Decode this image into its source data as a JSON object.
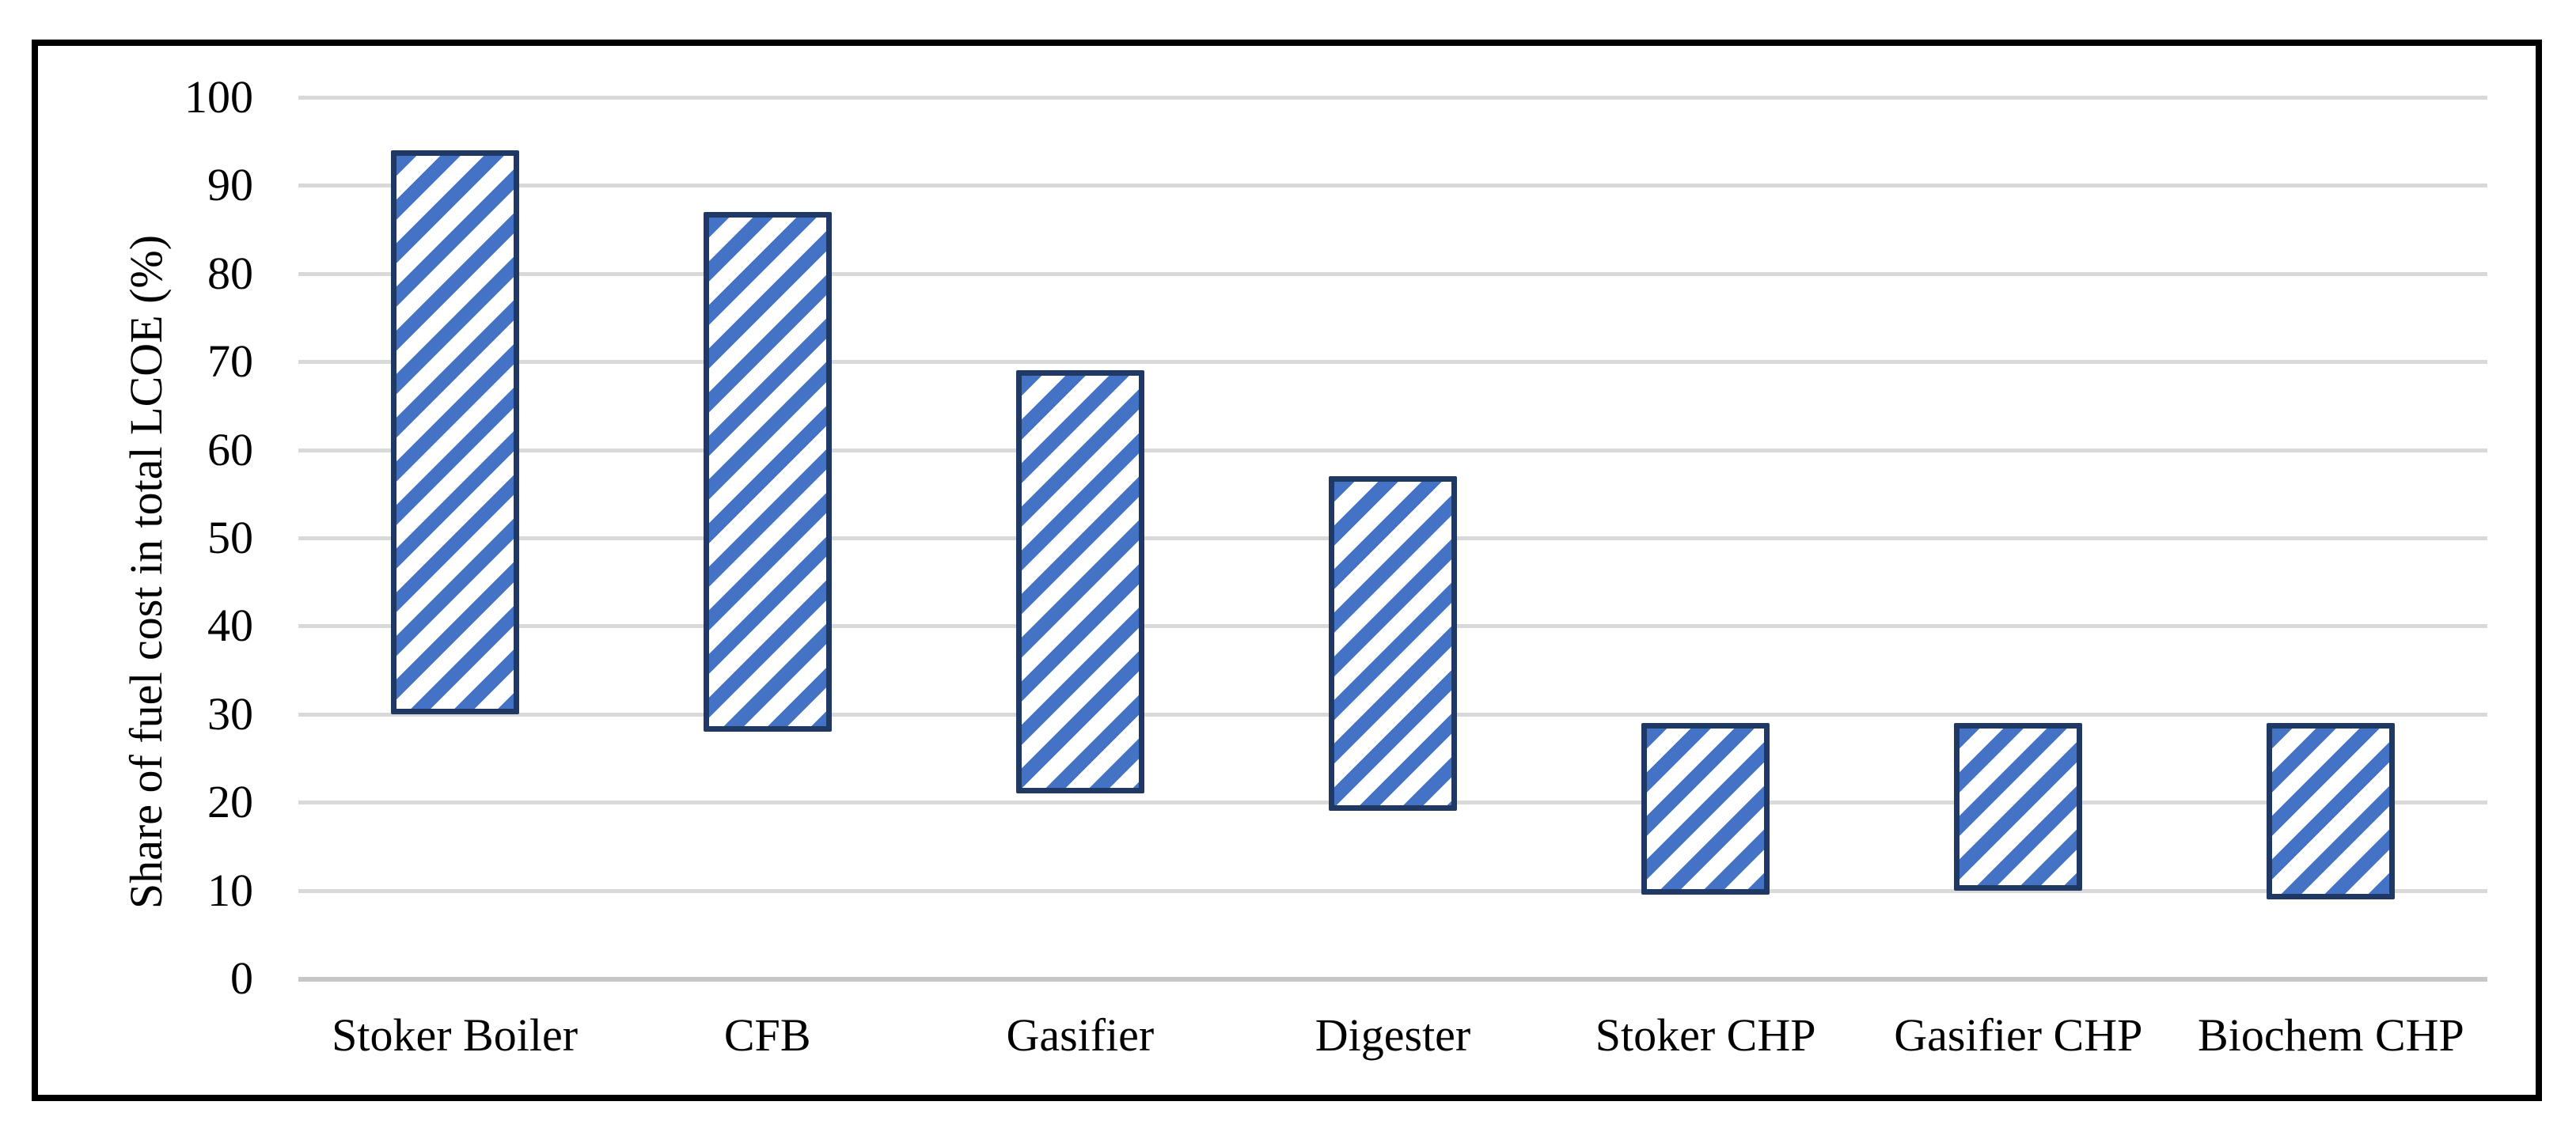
{
  "figure": {
    "background": "#ffffff",
    "border_color": "#000000"
  },
  "chart_data": {
    "type": "bar",
    "subtype": "floating-range-column",
    "title": "",
    "xlabel": "",
    "ylabel": "Share of fuel cost in total LCOE (%)",
    "categories": [
      "Stoker Boiler",
      "CFB",
      "Gasifier",
      "Digester",
      "Stoker CHP",
      "Gasifier CHP",
      "Biochem CHP"
    ],
    "series": [
      {
        "low": [
          30,
          28,
          21,
          19,
          9.5,
          10,
          9
        ],
        "high": [
          94,
          87,
          69,
          57,
          29,
          29,
          29
        ]
      }
    ],
    "ylim": [
      0,
      100
    ],
    "yticks": [
      0,
      10,
      20,
      30,
      40,
      50,
      60,
      70,
      80,
      90,
      100
    ],
    "grid": "horizontal",
    "legend_position": "none",
    "style": {
      "bar_hatch_pattern": "wide-upward-diagonal",
      "bar_hatch_angle_deg": 45,
      "bar_hatch_color": "#4472c4",
      "bar_hatch_background": "#ffffff",
      "bar_border_color": "#1f3864",
      "gridline_color": "#d9d9d9",
      "axis_line_color": "#c6c6c6",
      "text_color": "#000000",
      "figure_border_color": "#000000"
    }
  }
}
